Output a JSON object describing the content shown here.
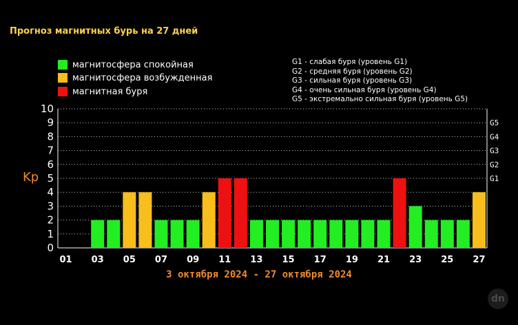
{
  "title": "Прогноз магнитных бурь на 27 дней",
  "legend": [
    {
      "label": "магнитосфера спокойная",
      "color": "#22ee22"
    },
    {
      "label": "магнитосфера возбужденная",
      "color": "#f8be1c"
    },
    {
      "label": "магнитная буря",
      "color": "#ee1111"
    }
  ],
  "storm_levels": [
    "G1 - слабая буря (уровень G1)",
    "G2 - средняя буря (уровень G2)",
    "G3 - сильная буря (уровень G3)",
    "G4 - очень сильная буря (уровень G4)",
    "G5 - экстремально сильная буря (уровень G5)"
  ],
  "watermark": "dn",
  "chart_data": {
    "type": "bar",
    "title": "Прогноз магнитных бурь на 27 дней",
    "ylabel": "Kp",
    "xlabel": "3 октября 2024 - 27 октября 2024",
    "ylim": [
      0,
      10
    ],
    "yticks": [
      0,
      1,
      2,
      3,
      4,
      5,
      6,
      7,
      8,
      9,
      10
    ],
    "grid": true,
    "right_axis_labels": [
      {
        "label": "G1",
        "at": 5
      },
      {
        "label": "G2",
        "at": 6
      },
      {
        "label": "G3",
        "at": 7
      },
      {
        "label": "G4",
        "at": 8
      },
      {
        "label": "G5",
        "at": 9
      }
    ],
    "categories": [
      "01",
      "02",
      "03",
      "04",
      "05",
      "06",
      "07",
      "08",
      "09",
      "10",
      "11",
      "12",
      "13",
      "14",
      "15",
      "16",
      "17",
      "18",
      "19",
      "20",
      "21",
      "22",
      "23",
      "24",
      "25",
      "26",
      "27"
    ],
    "xtick_labels": [
      "01",
      "03",
      "05",
      "07",
      "09",
      "11",
      "13",
      "15",
      "17",
      "19",
      "21",
      "23",
      "25",
      "27"
    ],
    "values": [
      null,
      null,
      2,
      2,
      4,
      4,
      2,
      2,
      2,
      4,
      5,
      5,
      2,
      2,
      2,
      2,
      2,
      2,
      2,
      2,
      2,
      5,
      3,
      2,
      2,
      2,
      4
    ],
    "colors": {
      "quiet": "#22ee22",
      "active": "#f8be1c",
      "storm": "#ee1111"
    }
  }
}
